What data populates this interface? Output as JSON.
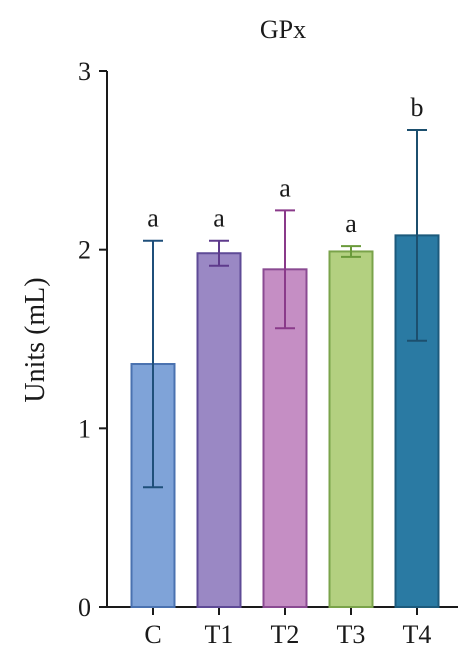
{
  "chart_data": {
    "type": "bar",
    "title": "GPx",
    "xlabel": "",
    "ylabel": "Units (mL)",
    "ylim": [
      0,
      3
    ],
    "yticks": [
      "0",
      "1",
      "2",
      "3"
    ],
    "categories": [
      "C",
      "T1",
      "T2",
      "T3",
      "T4"
    ],
    "values": [
      1.36,
      1.98,
      1.89,
      1.99,
      2.08
    ],
    "errors": [
      0.69,
      0.07,
      0.33,
      0.03,
      0.59
    ],
    "significance": [
      "a",
      "a",
      "a",
      "a",
      "b"
    ],
    "colors": [
      "#7fa3d8",
      "#9a88c4",
      "#c58ec4",
      "#b3d080",
      "#2a7aa3"
    ],
    "edge_colors": [
      "#4a72b0",
      "#5e4a96",
      "#8a4a92",
      "#7aa34a",
      "#1c5a7c"
    ],
    "error_colors": [
      "#1f4f7a",
      "#5e3a8c",
      "#8a3a8a",
      "#6a9a3a",
      "#1c4f6e"
    ],
    "grid": false,
    "legend": "none"
  }
}
